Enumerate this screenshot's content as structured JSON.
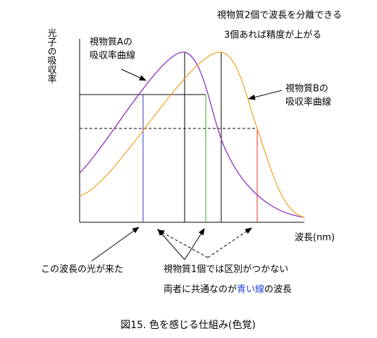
{
  "diagram": {
    "note_top": [
      "視物質2個で波長を分離できる",
      "3個あれば精度が上がる"
    ],
    "y_axis_label": "光子の吸収率",
    "x_axis_label": "波長(nm)",
    "curve_a_label": [
      "視物質Aの",
      "吸収率曲線"
    ],
    "curve_b_label": [
      "視物質Bの",
      "吸収率曲線"
    ],
    "incoming_light": "この波長の光が来た",
    "single_pigment": "視物質1個では区別がつかない",
    "common": [
      "両者に共通なのが",
      "青い線",
      "の波長"
    ],
    "caption": "図15. 色を感じる仕組み(色覚)"
  }
}
